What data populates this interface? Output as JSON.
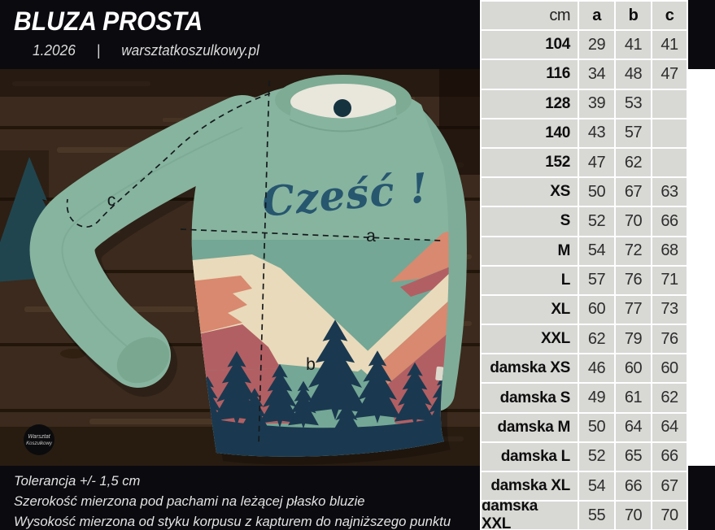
{
  "header": {
    "title": "BLUZA PROSTA",
    "edition": "1.2026",
    "separator": "|",
    "website": "warsztatkoszulkowy.pl"
  },
  "photo": {
    "print_text": "Cześć !",
    "badge_line1": "Warsztat",
    "badge_line2": "Koszulkowy",
    "measure_labels": {
      "a": "a",
      "b": "b",
      "c": "c"
    },
    "colors": {
      "shirt_green": "#87b49f",
      "print_sky": "#74a795",
      "print_cream": "#e9dabb",
      "print_salmon": "#d8896f",
      "print_maroon": "#b25f63",
      "print_navy": "#1a3950",
      "print_text_navy": "#27566f",
      "wood_brown": "#3b2a1d",
      "band_black": "#0a0a0f",
      "table_cell_gray": "#d8d8d5"
    }
  },
  "size_table": {
    "unit_header": "cm",
    "columns": [
      "a",
      "b",
      "c"
    ],
    "rows": [
      {
        "label": "104",
        "a": "29",
        "b": "41",
        "c": "41"
      },
      {
        "label": "116",
        "a": "34",
        "b": "48",
        "c": "47"
      },
      {
        "label": "128",
        "a": "39",
        "b": "53",
        "c": ""
      },
      {
        "label": "140",
        "a": "43",
        "b": "57",
        "c": ""
      },
      {
        "label": "152",
        "a": "47",
        "b": "62",
        "c": ""
      },
      {
        "label": "XS",
        "a": "50",
        "b": "67",
        "c": "63"
      },
      {
        "label": "S",
        "a": "52",
        "b": "70",
        "c": "66"
      },
      {
        "label": "M",
        "a": "54",
        "b": "72",
        "c": "68"
      },
      {
        "label": "L",
        "a": "57",
        "b": "76",
        "c": "71"
      },
      {
        "label": "XL",
        "a": "60",
        "b": "77",
        "c": "73"
      },
      {
        "label": "XXL",
        "a": "62",
        "b": "79",
        "c": "76"
      },
      {
        "label": "damska XS",
        "a": "46",
        "b": "60",
        "c": "60"
      },
      {
        "label": "damska S",
        "a": "49",
        "b": "61",
        "c": "62"
      },
      {
        "label": "damska M",
        "a": "50",
        "b": "64",
        "c": "64"
      },
      {
        "label": "damska L",
        "a": "52",
        "b": "65",
        "c": "66"
      },
      {
        "label": "damska XL",
        "a": "54",
        "b": "66",
        "c": "67"
      },
      {
        "label": "damska XXL",
        "a": "55",
        "b": "70",
        "c": "70"
      }
    ]
  },
  "footer": {
    "lines": [
      "Tolerancja +/- 1,5 cm",
      "Szerokość mierzona pod pachami na leżącej płasko bluzie",
      "Wysokość mierzona od styku korpusu z kapturem do najniższego punktu"
    ]
  }
}
